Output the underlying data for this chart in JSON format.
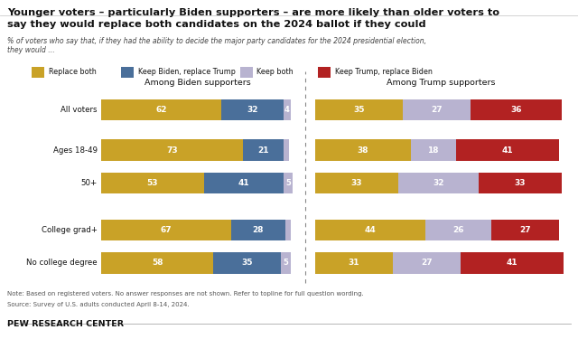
{
  "title_line1": "Younger voters – particularly Biden supporters – are more likely than older voters to",
  "title_line2": "say they would replace both candidates on the 2024 ballot if they could",
  "subtitle": "% of voters who say that, if they had the ability to decide the major party candidates for the 2024 presidential election,\nthey would ...",
  "note_line1": "Note: Based on registered voters. No answer responses are not shown. Refer to topline for full question wording.",
  "note_line2": "Source: Survey of U.S. adults conducted April 8-14, 2024.",
  "footer": "PEW RESEARCH CENTER",
  "categories": [
    "All voters",
    "Ages 18-49",
    "50+",
    "College grad+",
    "No college degree"
  ],
  "biden_header": "Among Biden supporters",
  "trump_header": "Among Trump supporters",
  "legend": [
    "Replace both",
    "Keep Biden, replace Trump",
    "Keep both",
    "Keep Trump, replace Biden"
  ],
  "colors": {
    "replace_both": "#C9A227",
    "keep_biden": "#4A6F9A",
    "keep_both": "#B8B3D0",
    "keep_trump": "#B22222"
  },
  "biden_data": {
    "replace_both": [
      62,
      73,
      53,
      67,
      58
    ],
    "keep_biden": [
      32,
      21,
      41,
      28,
      35
    ],
    "keep_both": [
      4,
      3,
      5,
      3,
      5
    ]
  },
  "trump_data": {
    "replace_both": [
      35,
      38,
      33,
      44,
      31
    ],
    "keep_both": [
      27,
      18,
      32,
      26,
      27
    ],
    "keep_trump": [
      36,
      41,
      33,
      27,
      41
    ]
  },
  "background_color": "#FFFFFF"
}
